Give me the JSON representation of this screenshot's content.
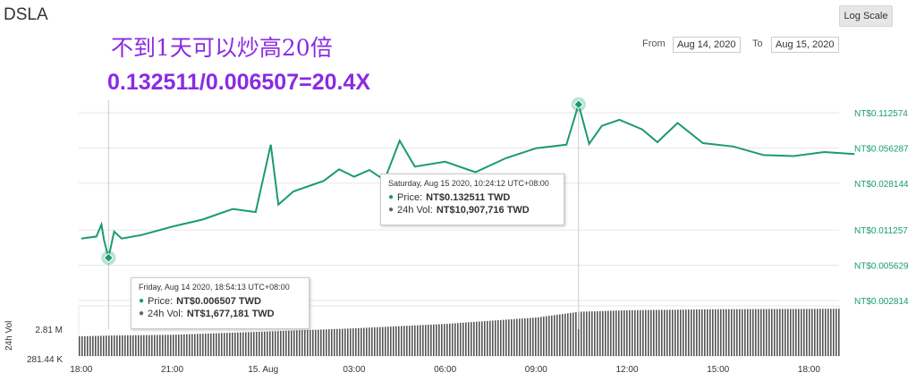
{
  "header": {
    "title": "DSLA",
    "log_scale_label": "Log Scale"
  },
  "annotation": {
    "line1": "不到1天可以炒高20倍",
    "line2": "0.132511/0.006507=20.4X"
  },
  "range": {
    "from_label": "From",
    "from_value": "Aug 14, 2020",
    "to_label": "To",
    "to_value": "Aug 15, 2020"
  },
  "tooltips": [
    {
      "title": "Saturday, Aug 15 2020, 10:24:12 UTC+08:00",
      "price_label": "Price:",
      "price_value": "NT$0.132511 TWD",
      "vol_label": "24h Vol:",
      "vol_value": "NT$10,907,716 TWD"
    },
    {
      "title": "Friday, Aug 14 2020, 18:54:13 UTC+08:00",
      "price_label": "Price:",
      "price_value": "NT$0.006507 TWD",
      "vol_label": "24h Vol:",
      "vol_value": "NT$1,677,181 TWD"
    }
  ],
  "colors": {
    "price": "#1a9a74",
    "volume": "#666666",
    "annotation": "#8a2be2"
  },
  "chart_data": {
    "type": "line",
    "y_scale": "log",
    "y_ticks": [
      "NT$0.112574",
      "NT$0.056287",
      "NT$0.028144",
      "NT$0.011257",
      "NT$0.005629",
      "NT$0.002814"
    ],
    "x_ticks": [
      "18:00",
      "21:00",
      "15. Aug",
      "03:00",
      "06:00",
      "09:00",
      "12:00",
      "15:00",
      "18:00"
    ],
    "volume_axis_label": "24h Vol",
    "volume_ticks": [
      "2.81 M",
      "281.44 K"
    ],
    "price_series": [
      {
        "t": "Aug 14 18:00",
        "v": 0.0095
      },
      {
        "t": "Aug 14 18:30",
        "v": 0.0099
      },
      {
        "t": "Aug 14 18:40",
        "v": 0.0125
      },
      {
        "t": "Aug 14 18:45",
        "v": 0.0092
      },
      {
        "t": "Aug 14 18:54",
        "v": 0.006507
      },
      {
        "t": "Aug 14 19:05",
        "v": 0.0109
      },
      {
        "t": "Aug 14 19:20",
        "v": 0.0095
      },
      {
        "t": "Aug 14 20:00",
        "v": 0.0102
      },
      {
        "t": "Aug 14 21:00",
        "v": 0.012
      },
      {
        "t": "Aug 14 22:00",
        "v": 0.0138
      },
      {
        "t": "Aug 14 23:00",
        "v": 0.017
      },
      {
        "t": "Aug 14 23:45",
        "v": 0.016
      },
      {
        "t": "Aug 15 00:15",
        "v": 0.06
      },
      {
        "t": "Aug 15 00:30",
        "v": 0.0185
      },
      {
        "t": "Aug 15 01:00",
        "v": 0.024
      },
      {
        "t": "Aug 15 02:00",
        "v": 0.0295
      },
      {
        "t": "Aug 15 02:30",
        "v": 0.037
      },
      {
        "t": "Aug 15 03:00",
        "v": 0.032
      },
      {
        "t": "Aug 15 03:30",
        "v": 0.0365
      },
      {
        "t": "Aug 15 04:00",
        "v": 0.03
      },
      {
        "t": "Aug 15 04:30",
        "v": 0.065
      },
      {
        "t": "Aug 15 05:00",
        "v": 0.039
      },
      {
        "t": "Aug 15 06:00",
        "v": 0.043
      },
      {
        "t": "Aug 15 07:00",
        "v": 0.035
      },
      {
        "t": "Aug 15 08:00",
        "v": 0.046
      },
      {
        "t": "Aug 15 09:00",
        "v": 0.056
      },
      {
        "t": "Aug 15 10:00",
        "v": 0.06
      },
      {
        "t": "Aug 15 10:24",
        "v": 0.132511
      },
      {
        "t": "Aug 15 10:45",
        "v": 0.061
      },
      {
        "t": "Aug 15 11:10",
        "v": 0.087
      },
      {
        "t": "Aug 15 11:45",
        "v": 0.098
      },
      {
        "t": "Aug 15 12:30",
        "v": 0.081
      },
      {
        "t": "Aug 15 13:00",
        "v": 0.063
      },
      {
        "t": "Aug 15 13:40",
        "v": 0.092
      },
      {
        "t": "Aug 15 14:30",
        "v": 0.062
      },
      {
        "t": "Aug 15 15:30",
        "v": 0.058
      },
      {
        "t": "Aug 15 16:30",
        "v": 0.049
      },
      {
        "t": "Aug 15 17:30",
        "v": 0.048
      },
      {
        "t": "Aug 15 18:30",
        "v": 0.052
      },
      {
        "t": "Aug 15 19:30",
        "v": 0.05
      }
    ],
    "volume_series": [
      {
        "t": "Aug 14 18:00",
        "v": 1400000
      },
      {
        "t": "Aug 14 18:54",
        "v": 1677181
      },
      {
        "t": "Aug 14 21:00",
        "v": 2000000
      },
      {
        "t": "Aug 15 00:00",
        "v": 3200000
      },
      {
        "t": "Aug 15 03:00",
        "v": 4500000
      },
      {
        "t": "Aug 15 06:00",
        "v": 6200000
      },
      {
        "t": "Aug 15 09:00",
        "v": 8700000
      },
      {
        "t": "Aug 15 10:24",
        "v": 10907716
      },
      {
        "t": "Aug 15 12:00",
        "v": 11500000
      },
      {
        "t": "Aug 15 15:00",
        "v": 11900000
      },
      {
        "t": "Aug 15 19:30",
        "v": 12100000
      }
    ],
    "highlights": [
      {
        "t": "Aug 15 10:24",
        "v": 0.132511
      },
      {
        "t": "Aug 14 18:54",
        "v": 0.006507
      }
    ]
  }
}
